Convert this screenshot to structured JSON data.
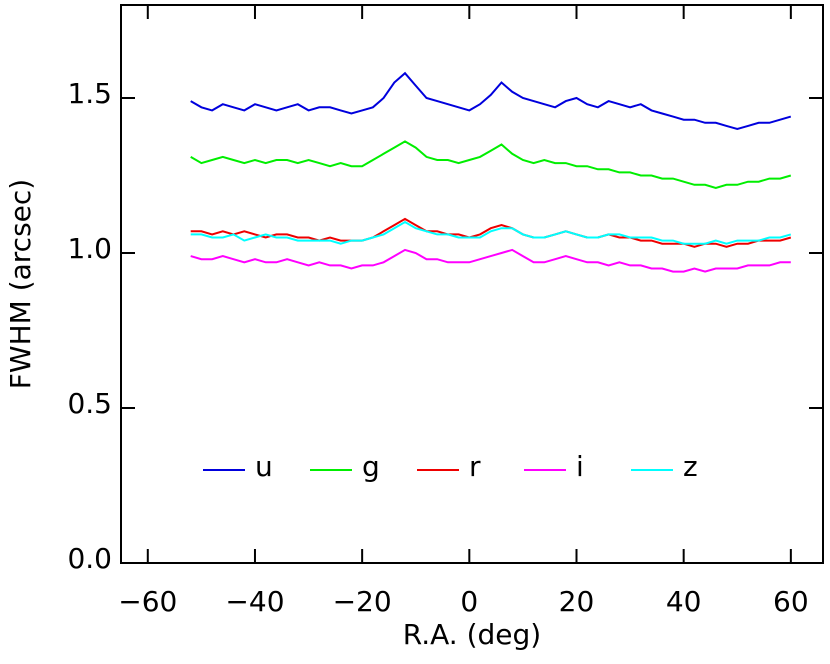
{
  "chart_data": {
    "type": "line",
    "xlabel": "R.A. (deg)",
    "ylabel": "FWHM (arcsec)",
    "xlim": [
      -65,
      66
    ],
    "ylim": [
      0,
      1.8
    ],
    "xticks": [
      {
        "value": -60,
        "label": "−60"
      },
      {
        "value": -40,
        "label": "−40"
      },
      {
        "value": -20,
        "label": "−20"
      },
      0,
      20,
      40,
      60
    ],
    "yticks": [
      {
        "value": 0,
        "label": "0.0"
      },
      0.5,
      {
        "value": 1,
        "label": "1.0"
      },
      1.5
    ],
    "legend": "inside-bottom",
    "x": [
      -52,
      -50,
      -48,
      -46,
      -44,
      -42,
      -40,
      -38,
      -36,
      -34,
      -32,
      -30,
      -28,
      -26,
      -24,
      -22,
      -20,
      -18,
      -16,
      -14,
      -12,
      -10,
      -8,
      -6,
      -4,
      -2,
      0,
      2,
      4,
      6,
      8,
      10,
      12,
      14,
      16,
      18,
      20,
      22,
      24,
      26,
      28,
      30,
      32,
      34,
      36,
      38,
      40,
      42,
      44,
      46,
      48,
      50,
      52,
      54,
      56,
      58,
      60
    ],
    "series": [
      {
        "name": "u",
        "color": "#0000dd",
        "values": [
          1.49,
          1.47,
          1.46,
          1.48,
          1.47,
          1.46,
          1.48,
          1.47,
          1.46,
          1.47,
          1.48,
          1.46,
          1.47,
          1.47,
          1.46,
          1.45,
          1.46,
          1.47,
          1.5,
          1.55,
          1.58,
          1.54,
          1.5,
          1.49,
          1.48,
          1.47,
          1.46,
          1.48,
          1.51,
          1.55,
          1.52,
          1.5,
          1.49,
          1.48,
          1.47,
          1.49,
          1.5,
          1.48,
          1.47,
          1.49,
          1.48,
          1.47,
          1.48,
          1.46,
          1.45,
          1.44,
          1.43,
          1.43,
          1.42,
          1.42,
          1.41,
          1.4,
          1.41,
          1.42,
          1.42,
          1.43,
          1.44
        ]
      },
      {
        "name": "g",
        "color": "#00ee00",
        "values": [
          1.31,
          1.29,
          1.3,
          1.31,
          1.3,
          1.29,
          1.3,
          1.29,
          1.3,
          1.3,
          1.29,
          1.3,
          1.29,
          1.28,
          1.29,
          1.28,
          1.28,
          1.3,
          1.32,
          1.34,
          1.36,
          1.34,
          1.31,
          1.3,
          1.3,
          1.29,
          1.3,
          1.31,
          1.33,
          1.35,
          1.32,
          1.3,
          1.29,
          1.3,
          1.29,
          1.29,
          1.28,
          1.28,
          1.27,
          1.27,
          1.26,
          1.26,
          1.25,
          1.25,
          1.24,
          1.24,
          1.23,
          1.22,
          1.22,
          1.21,
          1.22,
          1.22,
          1.23,
          1.23,
          1.24,
          1.24,
          1.25
        ]
      },
      {
        "name": "r",
        "color": "#ee0000",
        "values": [
          1.07,
          1.07,
          1.06,
          1.07,
          1.06,
          1.07,
          1.06,
          1.05,
          1.06,
          1.06,
          1.05,
          1.05,
          1.04,
          1.05,
          1.04,
          1.04,
          1.04,
          1.05,
          1.07,
          1.09,
          1.11,
          1.09,
          1.07,
          1.07,
          1.06,
          1.06,
          1.05,
          1.06,
          1.08,
          1.09,
          1.08,
          1.06,
          1.05,
          1.05,
          1.06,
          1.07,
          1.06,
          1.05,
          1.05,
          1.06,
          1.05,
          1.05,
          1.04,
          1.04,
          1.03,
          1.03,
          1.03,
          1.02,
          1.03,
          1.03,
          1.02,
          1.03,
          1.03,
          1.04,
          1.04,
          1.04,
          1.05
        ]
      },
      {
        "name": "i",
        "color": "#ff00ff",
        "values": [
          0.99,
          0.98,
          0.98,
          0.99,
          0.98,
          0.97,
          0.98,
          0.97,
          0.97,
          0.98,
          0.97,
          0.96,
          0.97,
          0.96,
          0.96,
          0.95,
          0.96,
          0.96,
          0.97,
          0.99,
          1.01,
          1.0,
          0.98,
          0.98,
          0.97,
          0.97,
          0.97,
          0.98,
          0.99,
          1.0,
          1.01,
          0.99,
          0.97,
          0.97,
          0.98,
          0.99,
          0.98,
          0.97,
          0.97,
          0.96,
          0.97,
          0.96,
          0.96,
          0.95,
          0.95,
          0.94,
          0.94,
          0.95,
          0.94,
          0.95,
          0.95,
          0.95,
          0.96,
          0.96,
          0.96,
          0.97,
          0.97
        ]
      },
      {
        "name": "z",
        "color": "#00ffff",
        "values": [
          1.06,
          1.06,
          1.05,
          1.05,
          1.06,
          1.04,
          1.05,
          1.06,
          1.05,
          1.05,
          1.04,
          1.04,
          1.04,
          1.04,
          1.03,
          1.04,
          1.04,
          1.05,
          1.06,
          1.08,
          1.1,
          1.08,
          1.07,
          1.06,
          1.06,
          1.05,
          1.05,
          1.05,
          1.07,
          1.08,
          1.08,
          1.06,
          1.05,
          1.05,
          1.06,
          1.07,
          1.06,
          1.05,
          1.05,
          1.06,
          1.06,
          1.05,
          1.05,
          1.05,
          1.04,
          1.04,
          1.03,
          1.03,
          1.03,
          1.04,
          1.03,
          1.04,
          1.04,
          1.04,
          1.05,
          1.05,
          1.06
        ]
      }
    ]
  }
}
